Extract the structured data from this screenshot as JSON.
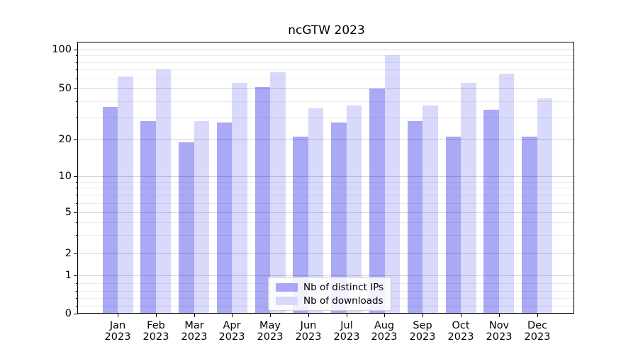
{
  "title": "ncGTW 2023",
  "chart_data": {
    "type": "bar",
    "title": "ncGTW 2023",
    "categories": [
      "Jan 2023",
      "Feb 2023",
      "Mar 2023",
      "Apr 2023",
      "May 2023",
      "Jun 2023",
      "Jul 2023",
      "Aug 2023",
      "Sep 2023",
      "Oct 2023",
      "Nov 2023",
      "Dec 2023"
    ],
    "x_tick_months": [
      "Jan",
      "Feb",
      "Mar",
      "Apr",
      "May",
      "Jun",
      "Jul",
      "Aug",
      "Sep",
      "Oct",
      "Nov",
      "Dec"
    ],
    "x_tick_year": "2023",
    "series": [
      {
        "name": "Nb of distinct IPs",
        "color_hex": "#a8a8f8",
        "fill": "rgba(10,10,230,0.35)",
        "values": [
          36,
          28,
          19,
          27,
          51,
          21,
          27,
          50,
          28,
          21,
          34,
          21
        ]
      },
      {
        "name": "Nb of downloads",
        "color_hex": "#d8d8fa",
        "fill": "rgba(10,10,230,0.155)",
        "values": [
          62,
          70,
          28,
          55,
          67,
          35,
          37,
          90,
          37,
          55,
          65,
          42
        ]
      }
    ],
    "yscale": "log-like (asinh/symlog, zero shown)",
    "y_major_ticks": [
      0,
      1,
      2,
      5,
      10,
      20,
      50,
      100
    ],
    "y_tick_labels": [
      "0",
      "1",
      "2",
      "5",
      "10",
      "20",
      "50",
      "100"
    ],
    "y_minor_ticks": [
      0.2,
      0.4,
      0.6,
      0.8,
      3,
      4,
      6,
      7,
      8,
      9,
      30,
      40,
      60,
      70,
      80,
      90
    ],
    "ylim": [
      0,
      113
    ],
    "grid": "horizontal major+minor",
    "legend_position": "lower center"
  }
}
